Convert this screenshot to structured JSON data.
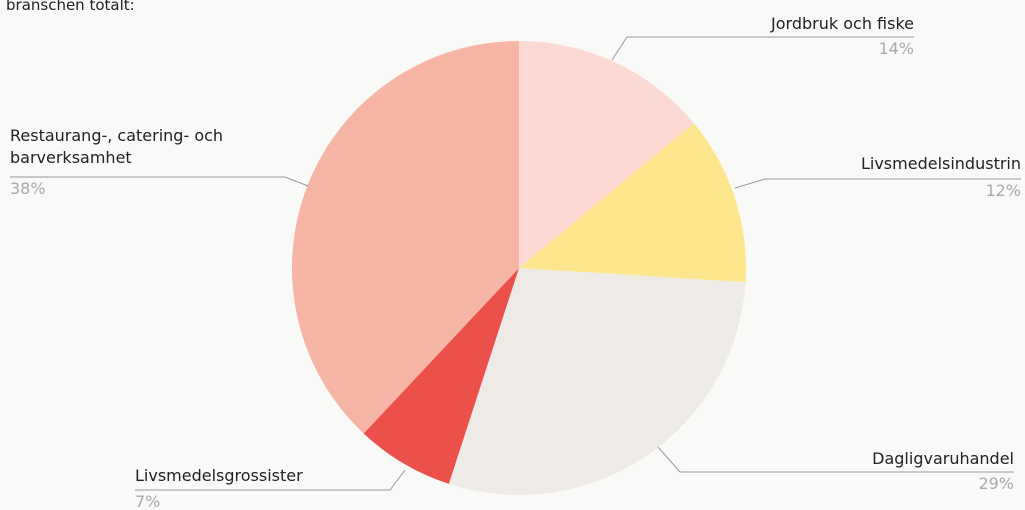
{
  "chart_data": {
    "type": "pie",
    "title": "branschen totalt:",
    "categories": [
      "Jordbruk och fiske",
      "Livsmedelsindustrin",
      "Dagligvaruhandel",
      "Livsmedelsgrossister",
      "Restaurang-, catering- och barverksamhet"
    ],
    "values": [
      14,
      12,
      29,
      7,
      38
    ],
    "value_labels": [
      "14%",
      "12%",
      "29%",
      "7%",
      "38%"
    ],
    "colors": [
      "#fcdad3",
      "#fee68c",
      "#eeeae6",
      "#ec504b",
      "#f7b5a5"
    ]
  }
}
